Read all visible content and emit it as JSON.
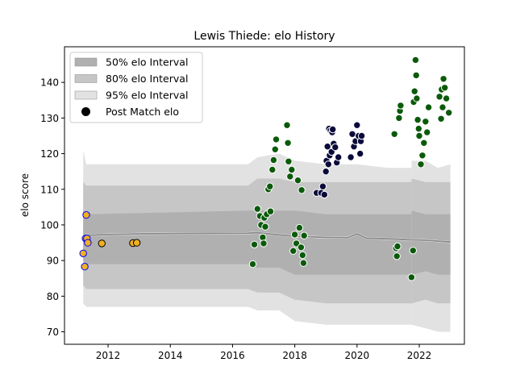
{
  "chart_data": {
    "type": "scatter",
    "title": "Lewis Thiede: elo History",
    "xlabel": "",
    "ylabel": "elo score",
    "xlim": [
      2010.6,
      2023.45
    ],
    "ylim": [
      66.5,
      150
    ],
    "xticks": [
      2012,
      2014,
      2016,
      2018,
      2020,
      2022
    ],
    "yticks": [
      70,
      80,
      90,
      100,
      110,
      120,
      130,
      140
    ],
    "grid": false,
    "legend": {
      "placement": "top-left",
      "entries": [
        {
          "label": "50% elo Interval",
          "color": "#b0b0b0"
        },
        {
          "label": "80% elo Interval",
          "color": "#c6c6c6"
        },
        {
          "label": "95% elo Interval",
          "color": "#e2e2e2"
        },
        {
          "label": "Post Match elo",
          "color": "#000000"
        }
      ]
    },
    "bands": [
      {
        "name": "95% elo Interval",
        "color": "#e2e2e2",
        "x": [
          2011.2,
          2011.3,
          2016.5,
          2016.8,
          2017.5,
          2018.0,
          2019.0,
          2020.0,
          2021.0,
          2021.5,
          2021.75
        ],
        "lower": [
          78,
          77,
          77,
          76,
          76,
          73,
          72,
          72,
          72,
          72,
          72
        ],
        "upper": [
          121,
          117,
          117,
          119,
          120,
          118,
          117,
          117,
          116,
          116,
          116
        ]
      },
      {
        "name": "80% elo Interval",
        "color": "#c6c6c6",
        "x": [
          2011.2,
          2011.3,
          2016.5,
          2016.8,
          2017.5,
          2018.0,
          2019.0,
          2020.0,
          2021.0,
          2021.5,
          2021.75
        ],
        "lower": [
          83,
          82,
          82,
          81,
          81,
          79,
          78,
          78,
          78,
          78,
          78
        ],
        "upper": [
          112,
          111,
          111,
          113,
          113,
          112,
          112,
          112,
          112,
          112,
          112
        ]
      },
      {
        "name": "50% elo Interval",
        "color": "#b0b0b0",
        "x": [
          2011.2,
          2011.3,
          2016.5,
          2016.8,
          2017.5,
          2018.0,
          2019.0,
          2020.0,
          2021.0,
          2021.5,
          2021.75
        ],
        "lower": [
          90,
          89,
          89,
          88,
          88,
          86,
          86,
          86,
          86,
          86,
          86
        ],
        "upper": [
          104,
          103,
          104,
          104,
          104,
          104,
          103,
          103,
          103,
          103,
          103
        ]
      }
    ],
    "right_bands": [
      {
        "color": "#e2e2e2",
        "x": [
          2021.75,
          2022.2,
          2022.6,
          2023.0
        ],
        "lower": [
          72,
          71,
          70,
          70
        ],
        "upper": [
          118,
          118,
          116,
          117
        ]
      },
      {
        "color": "#c6c6c6",
        "x": [
          2021.75,
          2022.2,
          2022.6,
          2023.0
        ],
        "lower": [
          78,
          79,
          78,
          78
        ],
        "upper": [
          113,
          112,
          112,
          112
        ]
      },
      {
        "color": "#b0b0b0",
        "x": [
          2021.75,
          2022.2,
          2022.6,
          2023.0
        ],
        "lower": [
          86,
          87,
          86,
          86
        ],
        "upper": [
          104,
          103,
          103,
          103
        ]
      }
    ],
    "median_line": {
      "x": [
        2011.2,
        2011.6,
        2013.0,
        2016.5,
        2016.8,
        2017.5,
        2018.0,
        2019.0,
        2019.7,
        2020.0,
        2020.3,
        2021.0,
        2021.75,
        2022.2,
        2023.0
      ],
      "y": [
        97.0,
        97.2,
        97.5,
        97.7,
        97.8,
        97.2,
        96.8,
        96.5,
        96.4,
        97.5,
        96.3,
        96.1,
        95.8,
        95.7,
        95.2
      ]
    },
    "series": [
      {
        "name": "",
        "fill": "#f0b020",
        "edge": "#0000ff",
        "x": [
          2011.2,
          2011.25,
          2011.28,
          2011.3,
          2011.32,
          2011.35
        ],
        "y": [
          92.0,
          88.3,
          96.2,
          102.8,
          96.2,
          95.0
        ]
      },
      {
        "name": "",
        "fill": "#f0b020",
        "edge": "#000000",
        "x": [
          2011.8,
          2012.8,
          2012.92
        ],
        "y": [
          94.8,
          94.9,
          95.0
        ]
      },
      {
        "name": "",
        "fill": "#0a5a0a",
        "edge": "#ffffff",
        "x": [
          2016.65,
          2016.7,
          2016.8,
          2016.88,
          2016.92,
          2016.97,
          2017.0,
          2017.02,
          2017.05,
          2017.1,
          2017.15,
          2017.2,
          2017.22,
          2017.28,
          2017.32,
          2017.37,
          2017.4,
          2017.75,
          2017.78,
          2017.8,
          2017.85,
          2017.9,
          2017.95,
          2018.0,
          2018.05,
          2018.1,
          2018.15,
          2018.2,
          2018.22,
          2018.25,
          2018.28,
          2018.3
        ],
        "y": [
          89.0,
          94.5,
          104.5,
          102.5,
          100.0,
          96.5,
          94.8,
          102.0,
          99.5,
          103.0,
          110.0,
          110.8,
          103.8,
          115.5,
          118.2,
          121.2,
          124.0,
          128.0,
          123.0,
          117.8,
          113.6,
          115.5,
          92.7,
          97.3,
          94.8,
          112.5,
          99.2,
          93.7,
          109.8,
          91.5,
          89.3,
          97.0
        ]
      },
      {
        "name": "",
        "fill": "#0a0a3a",
        "edge": "#ffffff",
        "x": [
          2018.7,
          2018.85,
          2018.9,
          2018.95,
          2019.0,
          2019.02,
          2019.05,
          2019.08,
          2019.1,
          2019.12,
          2019.15,
          2019.18,
          2019.2,
          2019.22,
          2019.25,
          2019.3,
          2019.35,
          2019.4,
          2019.8,
          2019.85,
          2019.9,
          2019.95,
          2020.0,
          2020.05,
          2020.1,
          2020.12,
          2020.15
        ],
        "y": [
          109.0,
          109.0,
          110.8,
          108.5,
          115.0,
          118.0,
          122.0,
          117.0,
          127.0,
          119.5,
          126.5,
          120.5,
          126.0,
          126.8,
          122.8,
          121.8,
          117.5,
          119.0,
          119.0,
          125.5,
          122.0,
          123.5,
          128.0,
          125.0,
          120.0,
          123.5,
          125.0
        ]
      },
      {
        "name": "",
        "fill": "#0a5a0a",
        "edge": "#ffffff",
        "x": [
          2021.2,
          2021.25,
          2021.28,
          2021.3,
          2021.35,
          2021.38,
          2021.4,
          2021.75,
          2021.8,
          2021.82,
          2021.85,
          2021.88,
          2021.9,
          2021.92,
          2021.95,
          2021.98,
          2022.0,
          2022.05,
          2022.1,
          2022.15,
          2022.2,
          2022.25,
          2022.3,
          2022.65,
          2022.7,
          2022.72,
          2022.75,
          2022.78,
          2022.82,
          2022.87,
          2022.95
        ],
        "y": [
          125.5,
          93.5,
          91.2,
          94.0,
          130.0,
          132.0,
          133.5,
          85.3,
          92.8,
          134.5,
          137.5,
          146.3,
          142.0,
          135.5,
          129.5,
          127.0,
          125.0,
          117.0,
          119.5,
          123.0,
          129.0,
          126.0,
          133.0,
          136.0,
          129.8,
          138.0,
          133.0,
          141.0,
          138.5,
          135.5,
          131.5
        ]
      }
    ]
  }
}
